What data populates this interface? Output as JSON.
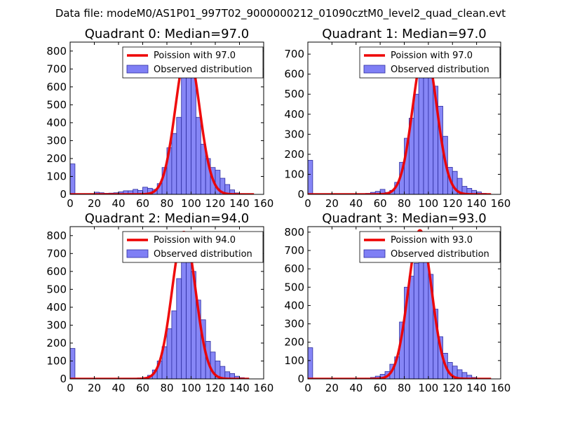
{
  "figure_title": "Data file: modeM0/AS1P01_997T02_9000000212_01090cztM0_level2_quad_clean.evt",
  "colors": {
    "bar_fill": "#7f7ff5",
    "bar_edge": "#2c2ca0",
    "curve": "#ee0000",
    "axis": "#000000"
  },
  "chart_data": [
    {
      "type": "bar",
      "title": "Quadrant 0: Median=97.0",
      "xlim": [
        0,
        160
      ],
      "ylim": [
        0,
        850
      ],
      "xticks": [
        "0",
        "20",
        "40",
        "60",
        "80",
        "100",
        "120",
        "140",
        "160"
      ],
      "yticks": [
        "0",
        "100",
        "200",
        "300",
        "400",
        "500",
        "600",
        "700",
        "800"
      ],
      "legend": [
        "Poission with 97.0",
        "Observed distribution"
      ],
      "bin_width": 4,
      "bars": [
        {
          "x": 0,
          "y": 170
        },
        {
          "x": 4,
          "y": 4
        },
        {
          "x": 8,
          "y": 3
        },
        {
          "x": 12,
          "y": 3
        },
        {
          "x": 16,
          "y": 4
        },
        {
          "x": 20,
          "y": 12
        },
        {
          "x": 24,
          "y": 9
        },
        {
          "x": 28,
          "y": 6
        },
        {
          "x": 32,
          "y": 7
        },
        {
          "x": 36,
          "y": 9
        },
        {
          "x": 40,
          "y": 14
        },
        {
          "x": 44,
          "y": 20
        },
        {
          "x": 48,
          "y": 20
        },
        {
          "x": 52,
          "y": 28
        },
        {
          "x": 56,
          "y": 22
        },
        {
          "x": 60,
          "y": 40
        },
        {
          "x": 64,
          "y": 34
        },
        {
          "x": 68,
          "y": 28
        },
        {
          "x": 72,
          "y": 60
        },
        {
          "x": 76,
          "y": 150
        },
        {
          "x": 80,
          "y": 260
        },
        {
          "x": 84,
          "y": 340
        },
        {
          "x": 88,
          "y": 430
        },
        {
          "x": 92,
          "y": 660
        },
        {
          "x": 96,
          "y": 760
        },
        {
          "x": 100,
          "y": 710
        },
        {
          "x": 104,
          "y": 430
        },
        {
          "x": 108,
          "y": 280
        },
        {
          "x": 112,
          "y": 200
        },
        {
          "x": 116,
          "y": 150
        },
        {
          "x": 120,
          "y": 135
        },
        {
          "x": 124,
          "y": 90
        },
        {
          "x": 128,
          "y": 55
        },
        {
          "x": 132,
          "y": 25
        },
        {
          "x": 136,
          "y": 8
        },
        {
          "x": 140,
          "y": 3
        },
        {
          "x": 144,
          "y": 2
        }
      ],
      "curve": {
        "mean": 97,
        "peak": 810,
        "sigma": 9.85,
        "x_start": 0,
        "x_end": 152
      }
    },
    {
      "type": "bar",
      "title": "Quadrant 1: Median=97.0",
      "xlim": [
        0,
        160
      ],
      "ylim": [
        0,
        760
      ],
      "xticks": [
        "0",
        "20",
        "40",
        "60",
        "80",
        "100",
        "120",
        "140",
        "160"
      ],
      "yticks": [
        "0",
        "100",
        "200",
        "300",
        "400",
        "500",
        "600",
        "700"
      ],
      "legend": [
        "Poission with 97.0",
        "Observed distribution"
      ],
      "bin_width": 4,
      "bars": [
        {
          "x": 0,
          "y": 170
        },
        {
          "x": 4,
          "y": 3
        },
        {
          "x": 8,
          "y": 2
        },
        {
          "x": 12,
          "y": 2
        },
        {
          "x": 16,
          "y": 2
        },
        {
          "x": 20,
          "y": 3
        },
        {
          "x": 24,
          "y": 2
        },
        {
          "x": 28,
          "y": 2
        },
        {
          "x": 32,
          "y": 2
        },
        {
          "x": 36,
          "y": 2
        },
        {
          "x": 40,
          "y": 3
        },
        {
          "x": 44,
          "y": 3
        },
        {
          "x": 48,
          "y": 5
        },
        {
          "x": 52,
          "y": 10
        },
        {
          "x": 56,
          "y": 15
        },
        {
          "x": 60,
          "y": 25
        },
        {
          "x": 64,
          "y": 10
        },
        {
          "x": 68,
          "y": 20
        },
        {
          "x": 72,
          "y": 60
        },
        {
          "x": 76,
          "y": 160
        },
        {
          "x": 80,
          "y": 280
        },
        {
          "x": 84,
          "y": 380
        },
        {
          "x": 88,
          "y": 500
        },
        {
          "x": 92,
          "y": 600
        },
        {
          "x": 96,
          "y": 650
        },
        {
          "x": 100,
          "y": 620
        },
        {
          "x": 104,
          "y": 540
        },
        {
          "x": 108,
          "y": 440
        },
        {
          "x": 112,
          "y": 290
        },
        {
          "x": 116,
          "y": 135
        },
        {
          "x": 120,
          "y": 115
        },
        {
          "x": 124,
          "y": 80
        },
        {
          "x": 128,
          "y": 40
        },
        {
          "x": 132,
          "y": 30
        },
        {
          "x": 136,
          "y": 20
        },
        {
          "x": 140,
          "y": 12
        },
        {
          "x": 144,
          "y": 5
        }
      ],
      "curve": {
        "mean": 97,
        "peak": 730,
        "sigma": 9.85,
        "x_start": 0,
        "x_end": 152
      }
    },
    {
      "type": "bar",
      "title": "Quadrant 2: Median=94.0",
      "xlim": [
        0,
        160
      ],
      "ylim": [
        0,
        850
      ],
      "xticks": [
        "0",
        "20",
        "40",
        "60",
        "80",
        "100",
        "120",
        "140",
        "160"
      ],
      "yticks": [
        "0",
        "100",
        "200",
        "300",
        "400",
        "500",
        "600",
        "700",
        "800"
      ],
      "legend": [
        "Poission with 94.0",
        "Observed distribution"
      ],
      "bin_width": 4,
      "bars": [
        {
          "x": 0,
          "y": 170
        },
        {
          "x": 4,
          "y": 4
        },
        {
          "x": 8,
          "y": 2
        },
        {
          "x": 12,
          "y": 2
        },
        {
          "x": 16,
          "y": 2
        },
        {
          "x": 20,
          "y": 2
        },
        {
          "x": 24,
          "y": 2
        },
        {
          "x": 28,
          "y": 2
        },
        {
          "x": 32,
          "y": 2
        },
        {
          "x": 36,
          "y": 2
        },
        {
          "x": 40,
          "y": 2
        },
        {
          "x": 44,
          "y": 3
        },
        {
          "x": 48,
          "y": 3
        },
        {
          "x": 52,
          "y": 4
        },
        {
          "x": 56,
          "y": 5
        },
        {
          "x": 60,
          "y": 8
        },
        {
          "x": 64,
          "y": 20
        },
        {
          "x": 68,
          "y": 50
        },
        {
          "x": 72,
          "y": 100
        },
        {
          "x": 76,
          "y": 180
        },
        {
          "x": 80,
          "y": 280
        },
        {
          "x": 84,
          "y": 380
        },
        {
          "x": 88,
          "y": 560
        },
        {
          "x": 92,
          "y": 720
        },
        {
          "x": 96,
          "y": 750
        },
        {
          "x": 100,
          "y": 600
        },
        {
          "x": 104,
          "y": 440
        },
        {
          "x": 108,
          "y": 330
        },
        {
          "x": 112,
          "y": 210
        },
        {
          "x": 116,
          "y": 150
        },
        {
          "x": 120,
          "y": 100
        },
        {
          "x": 124,
          "y": 70
        },
        {
          "x": 128,
          "y": 40
        },
        {
          "x": 132,
          "y": 30
        },
        {
          "x": 136,
          "y": 15
        },
        {
          "x": 140,
          "y": 7
        }
      ],
      "curve": {
        "mean": 94,
        "peak": 820,
        "sigma": 9.7,
        "x_start": 0,
        "x_end": 148
      }
    },
    {
      "type": "bar",
      "title": "Quadrant 3: Median=93.0",
      "xlim": [
        0,
        160
      ],
      "ylim": [
        0,
        830
      ],
      "xticks": [
        "0",
        "20",
        "40",
        "60",
        "80",
        "100",
        "120",
        "140",
        "160"
      ],
      "yticks": [
        "0",
        "100",
        "200",
        "300",
        "400",
        "500",
        "600",
        "700",
        "800"
      ],
      "legend": [
        "Poission with 93.0",
        "Observed distribution"
      ],
      "bin_width": 4,
      "bars": [
        {
          "x": 0,
          "y": 170
        },
        {
          "x": 4,
          "y": 3
        },
        {
          "x": 8,
          "y": 2
        },
        {
          "x": 12,
          "y": 2
        },
        {
          "x": 16,
          "y": 2
        },
        {
          "x": 20,
          "y": 2
        },
        {
          "x": 24,
          "y": 2
        },
        {
          "x": 28,
          "y": 2
        },
        {
          "x": 32,
          "y": 2
        },
        {
          "x": 36,
          "y": 2
        },
        {
          "x": 40,
          "y": 2
        },
        {
          "x": 44,
          "y": 3
        },
        {
          "x": 48,
          "y": 3
        },
        {
          "x": 52,
          "y": 8
        },
        {
          "x": 56,
          "y": 15
        },
        {
          "x": 60,
          "y": 25
        },
        {
          "x": 64,
          "y": 40
        },
        {
          "x": 68,
          "y": 80
        },
        {
          "x": 72,
          "y": 120
        },
        {
          "x": 76,
          "y": 310
        },
        {
          "x": 80,
          "y": 500
        },
        {
          "x": 84,
          "y": 560
        },
        {
          "x": 88,
          "y": 630
        },
        {
          "x": 92,
          "y": 780
        },
        {
          "x": 96,
          "y": 710
        },
        {
          "x": 100,
          "y": 570
        },
        {
          "x": 104,
          "y": 380
        },
        {
          "x": 108,
          "y": 230
        },
        {
          "x": 112,
          "y": 140
        },
        {
          "x": 116,
          "y": 90
        },
        {
          "x": 120,
          "y": 70
        },
        {
          "x": 124,
          "y": 50
        },
        {
          "x": 128,
          "y": 35
        },
        {
          "x": 132,
          "y": 20
        },
        {
          "x": 136,
          "y": 8
        }
      ],
      "curve": {
        "mean": 93,
        "peak": 810,
        "sigma": 9.64,
        "x_start": 0,
        "x_end": 152
      }
    }
  ]
}
